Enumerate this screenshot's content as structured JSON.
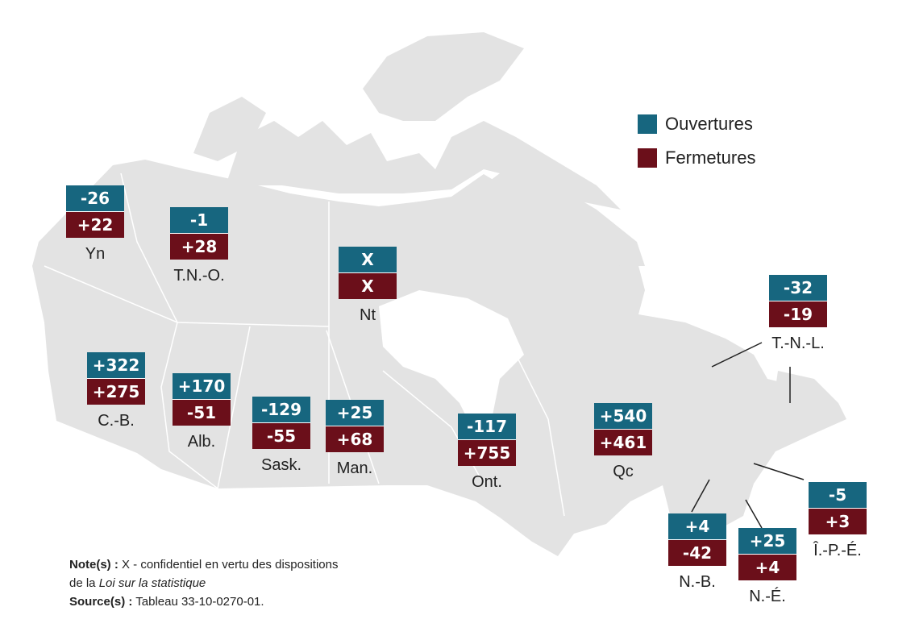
{
  "colors": {
    "openings": "#17667f",
    "closures": "#6b0f1a",
    "land": "#e3e3e3"
  },
  "legend": {
    "openings": "Ouvertures",
    "closures": "Fermetures"
  },
  "regions": [
    {
      "label": "Yn",
      "openings": "-26",
      "closures": "+22"
    },
    {
      "label": "T.N.-O.",
      "openings": "-1",
      "closures": "+28"
    },
    {
      "label": "Nt",
      "openings": "X",
      "closures": "X"
    },
    {
      "label": "T.-N.-L.",
      "openings": "-32",
      "closures": "-19"
    },
    {
      "label": "C.-B.",
      "openings": "+322",
      "closures": "+275"
    },
    {
      "label": "Alb.",
      "openings": "+170",
      "closures": "-51"
    },
    {
      "label": "Sask.",
      "openings": "-129",
      "closures": "-55"
    },
    {
      "label": "Man.",
      "openings": "+25",
      "closures": "+68"
    },
    {
      "label": "Ont.",
      "openings": "-117",
      "closures": "+755"
    },
    {
      "label": "Qc",
      "openings": "+540",
      "closures": "+461"
    },
    {
      "label": "N.-B.",
      "openings": "+4",
      "closures": "-42"
    },
    {
      "label": "N.-É.",
      "openings": "+25",
      "closures": "+4"
    },
    {
      "label": "Î.-P.-É.",
      "openings": "-5",
      "closures": "+3"
    }
  ],
  "notes": {
    "note_label": "Note(s) :",
    "note_text": " X - confidentiel en vertu des dispositions",
    "note_text2": "de la ",
    "note_italic": "Loi sur la statistique",
    "source_label": "Source(s) :",
    "source_text": " Tableau 33-10-0270-01."
  }
}
